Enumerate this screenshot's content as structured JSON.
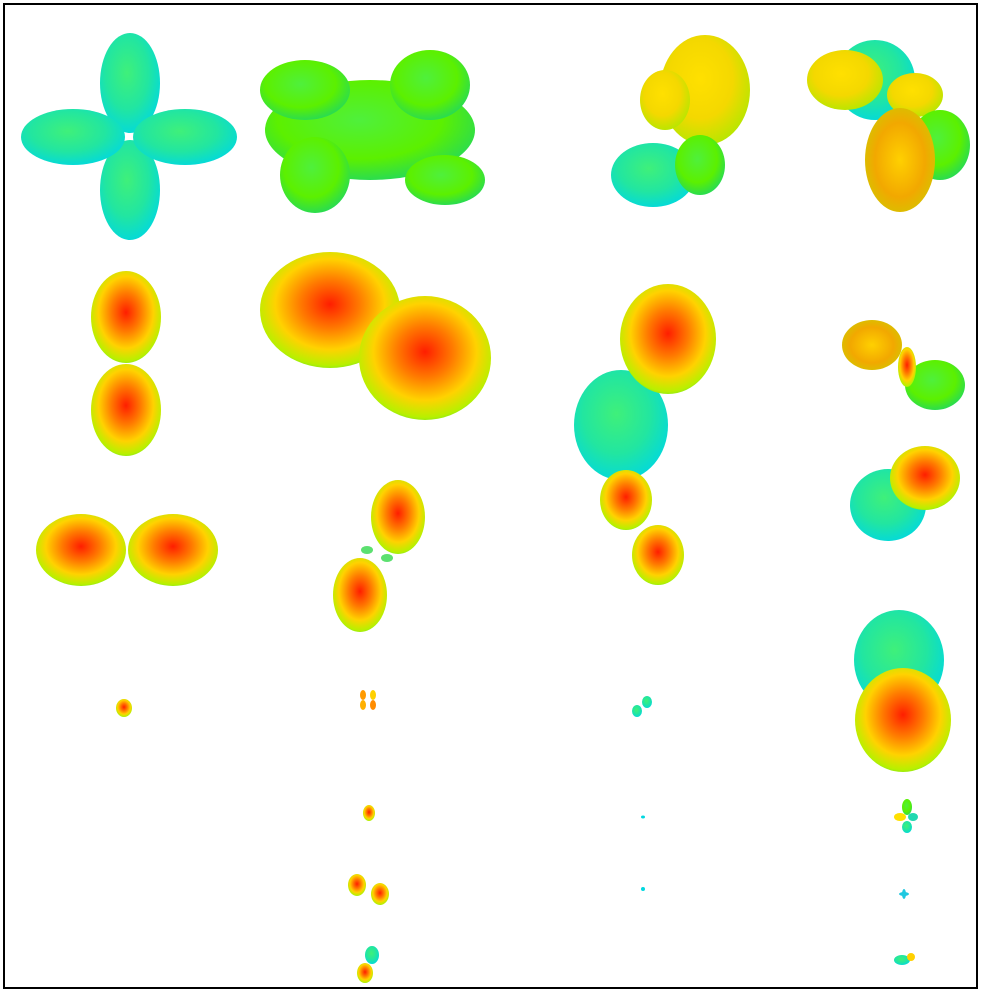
{
  "figure": {
    "background": "#ffffff",
    "border_color": "#000000",
    "grid": {
      "columns": 4,
      "rows": 7
    },
    "colormap": [
      "#00e5e0",
      "#3cf06a",
      "#a8f000",
      "#ffe000",
      "#ff8c00",
      "#ff2a00"
    ],
    "glyph_type": "3d-orientation-distribution-glyph",
    "cells": [
      {
        "row": 1,
        "col": 1,
        "shape": "four-lobe-cross",
        "color": "cyan-green"
      },
      {
        "row": 1,
        "col": 2,
        "shape": "four-lobe-cross-flattened",
        "color": "green"
      },
      {
        "row": 1,
        "col": 3,
        "shape": "three-lobe-oblique",
        "color": "yellow-cyan"
      },
      {
        "row": 1,
        "col": 4,
        "shape": "multi-lobe",
        "color": "yellow-cyan"
      },
      {
        "row": 2,
        "col": 1,
        "shape": "two-lobe-vertical",
        "color": "red-yellow"
      },
      {
        "row": 2,
        "col": 2,
        "shape": "two-lobe-fat-horizontal",
        "color": "red-yellow"
      },
      {
        "row": 2,
        "col": 3,
        "shape": "two-lobe-oblique-large",
        "color": "red-green"
      },
      {
        "row": 2,
        "col": 4,
        "shape": "two-lobe-oblique",
        "color": "yellow-green"
      },
      {
        "row": 3,
        "col": 1,
        "shape": "two-lobe-horizontal",
        "color": "red-yellow"
      },
      {
        "row": 3,
        "col": 2,
        "shape": "two-lobe-oblique",
        "color": "red-yellow"
      },
      {
        "row": 3,
        "col": 3,
        "shape": "two-lobe-oblique-small",
        "color": "red-yellow"
      },
      {
        "row": 3,
        "col": 4,
        "shape": "two-lobe-oblique",
        "color": "red-green"
      },
      {
        "row": 4,
        "col": 1,
        "shape": "tiny-blob",
        "color": "red"
      },
      {
        "row": 4,
        "col": 2,
        "shape": "tiny-cross",
        "color": "orange"
      },
      {
        "row": 4,
        "col": 3,
        "shape": "tiny-two-lobe",
        "color": "cyan"
      },
      {
        "row": 4,
        "col": 4,
        "shape": "two-lobe-vertical-twisted",
        "color": "red-green"
      },
      {
        "row": 5,
        "col": 2,
        "shape": "tiny-blob",
        "color": "red"
      },
      {
        "row": 5,
        "col": 3,
        "shape": "dot",
        "color": "cyan"
      },
      {
        "row": 5,
        "col": 4,
        "shape": "tiny-multi-lobe",
        "color": "yellow-cyan"
      },
      {
        "row": 6,
        "col": 2,
        "shape": "tiny-two-lobe",
        "color": "red-cyan"
      },
      {
        "row": 6,
        "col": 3,
        "shape": "dot",
        "color": "cyan"
      },
      {
        "row": 6,
        "col": 4,
        "shape": "tiny-cross",
        "color": "cyan"
      },
      {
        "row": 7,
        "col": 2,
        "shape": "tiny-two-lobe-vertical",
        "color": "red-cyan"
      },
      {
        "row": 7,
        "col": 4,
        "shape": "tiny-two-lobe",
        "color": "cyan"
      }
    ]
  }
}
